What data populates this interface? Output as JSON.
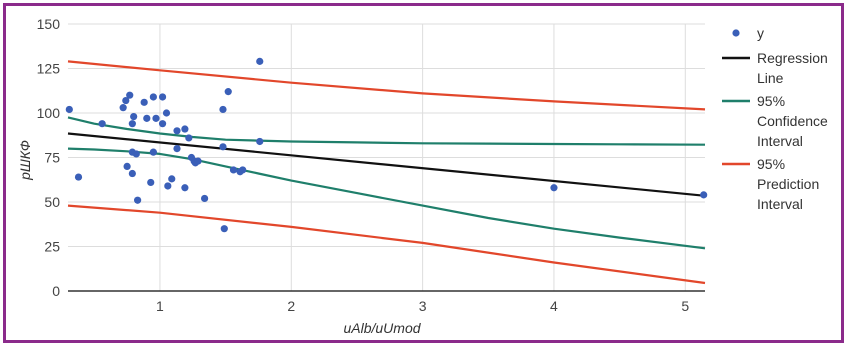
{
  "chart_data": {
    "type": "scatter",
    "xlabel": "uAlb/uUmod",
    "ylabel": "рШКФ",
    "xlim": [
      0.3,
      5.15
    ],
    "ylim": [
      0,
      150
    ],
    "x_ticks": [
      "1",
      "2",
      "3",
      "4",
      "5"
    ],
    "y_ticks": [
      "0",
      "25",
      "50",
      "75",
      "100",
      "125",
      "150"
    ],
    "grid": true,
    "legend_position": "right",
    "legend": [
      {
        "key": "y",
        "lines": [
          "y"
        ],
        "color": "#3a5fb8",
        "marker": "dot"
      },
      {
        "key": "regression",
        "lines": [
          "Regression",
          "Line"
        ],
        "color": "#111111",
        "marker": "line"
      },
      {
        "key": "confidence",
        "lines": [
          "95%",
          "Confidence",
          "Interval"
        ],
        "color": "#1f7f6b",
        "marker": "line"
      },
      {
        "key": "prediction",
        "lines": [
          "95%",
          "Prediction",
          "Interval"
        ],
        "color": "#e2472b",
        "marker": "line"
      }
    ],
    "points": [
      {
        "x": 0.31,
        "y": 102
      },
      {
        "x": 0.38,
        "y": 64
      },
      {
        "x": 0.56,
        "y": 94
      },
      {
        "x": 0.72,
        "y": 103
      },
      {
        "x": 0.74,
        "y": 107
      },
      {
        "x": 0.77,
        "y": 110
      },
      {
        "x": 0.79,
        "y": 94
      },
      {
        "x": 0.8,
        "y": 98
      },
      {
        "x": 0.75,
        "y": 70
      },
      {
        "x": 0.79,
        "y": 78
      },
      {
        "x": 0.82,
        "y": 77
      },
      {
        "x": 0.79,
        "y": 66
      },
      {
        "x": 0.83,
        "y": 51
      },
      {
        "x": 0.88,
        "y": 106
      },
      {
        "x": 0.9,
        "y": 97
      },
      {
        "x": 0.95,
        "y": 109
      },
      {
        "x": 0.97,
        "y": 97
      },
      {
        "x": 1.02,
        "y": 109
      },
      {
        "x": 1.02,
        "y": 94
      },
      {
        "x": 1.05,
        "y": 100
      },
      {
        "x": 0.93,
        "y": 61
      },
      {
        "x": 0.95,
        "y": 78
      },
      {
        "x": 1.06,
        "y": 59
      },
      {
        "x": 1.09,
        "y": 63
      },
      {
        "x": 1.13,
        "y": 90
      },
      {
        "x": 1.13,
        "y": 80
      },
      {
        "x": 1.19,
        "y": 91
      },
      {
        "x": 1.22,
        "y": 86
      },
      {
        "x": 1.19,
        "y": 58
      },
      {
        "x": 1.24,
        "y": 75
      },
      {
        "x": 1.26,
        "y": 73
      },
      {
        "x": 1.27,
        "y": 72
      },
      {
        "x": 1.29,
        "y": 73
      },
      {
        "x": 1.34,
        "y": 52
      },
      {
        "x": 1.48,
        "y": 102
      },
      {
        "x": 1.52,
        "y": 112
      },
      {
        "x": 1.48,
        "y": 81
      },
      {
        "x": 1.49,
        "y": 35
      },
      {
        "x": 1.56,
        "y": 68
      },
      {
        "x": 1.61,
        "y": 67
      },
      {
        "x": 1.63,
        "y": 68
      },
      {
        "x": 1.76,
        "y": 129
      },
      {
        "x": 1.76,
        "y": 84
      },
      {
        "x": 4.0,
        "y": 58
      },
      {
        "x": 5.14,
        "y": 54
      }
    ],
    "series": [
      {
        "key": "regression",
        "color": "#111111",
        "x": [
          0.3,
          5.15
        ],
        "y": [
          88.5,
          53.5
        ]
      },
      {
        "key": "confidence_upper",
        "color": "#1f7f6b",
        "x": [
          0.3,
          0.5,
          0.75,
          1.0,
          1.25,
          1.5,
          2.0,
          2.5,
          3.0,
          3.5,
          4.0,
          4.5,
          5.15
        ],
        "y": [
          97.5,
          94,
          91,
          88.5,
          86.5,
          85,
          84,
          83.5,
          83,
          82.8,
          82.6,
          82.4,
          82.2
        ]
      },
      {
        "key": "confidence_lower",
        "color": "#1f7f6b",
        "x": [
          0.3,
          0.5,
          0.75,
          1.0,
          1.25,
          1.5,
          1.75,
          2.0,
          2.5,
          3.0,
          3.5,
          4.0,
          4.5,
          5.15
        ],
        "y": [
          80,
          79.5,
          78.5,
          77,
          74,
          70,
          66,
          62,
          55,
          48,
          41,
          35,
          30,
          24
        ]
      },
      {
        "key": "prediction_upper",
        "color": "#e2472b",
        "x": [
          0.3,
          1.0,
          2.0,
          3.0,
          4.0,
          5.15
        ],
        "y": [
          129,
          124,
          117,
          111,
          106.5,
          102
        ]
      },
      {
        "key": "prediction_lower",
        "color": "#e2472b",
        "x": [
          0.3,
          1.0,
          2.0,
          3.0,
          4.0,
          5.15
        ],
        "y": [
          48,
          44,
          36,
          27,
          16,
          4.5
        ]
      }
    ]
  }
}
